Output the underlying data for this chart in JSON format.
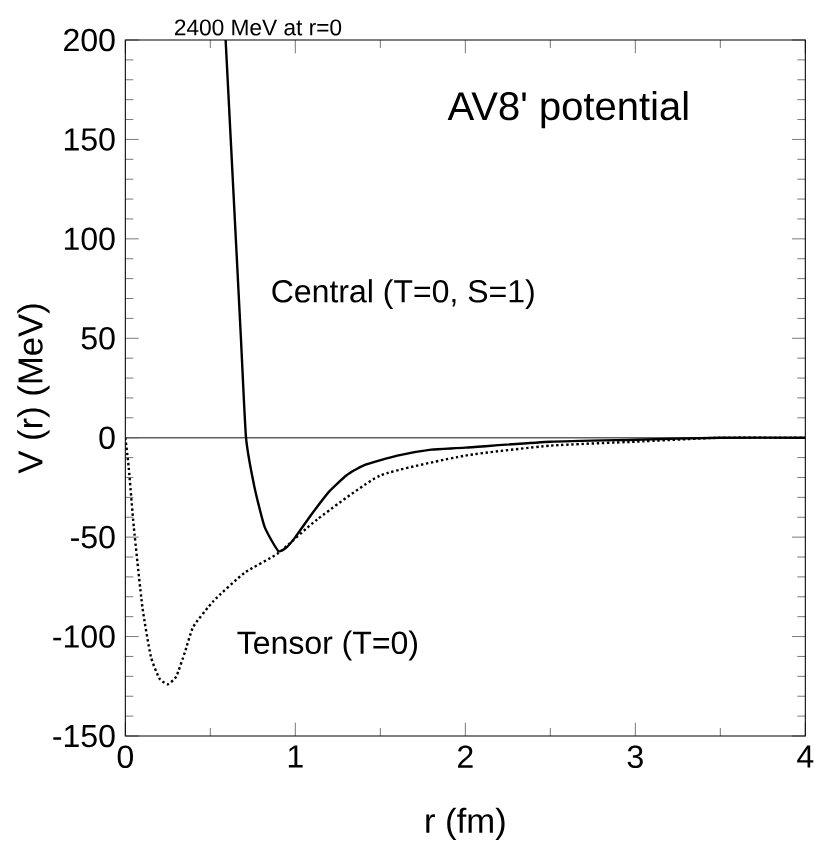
{
  "chart_data": {
    "type": "line",
    "title": "AV8' potential",
    "xlabel": "r (fm)",
    "ylabel": "V (r)  (MeV)",
    "annotations": [
      "2400 MeV at r=0"
    ],
    "xlim": [
      0,
      4
    ],
    "ylim": [
      -150,
      200
    ],
    "xticks": [
      0,
      1,
      2,
      3,
      4
    ],
    "yticks": [
      -150,
      -100,
      -50,
      0,
      50,
      100,
      150,
      200
    ],
    "marker": "none",
    "ref_lines": [
      {
        "axis": "y",
        "value": 0,
        "color": "#606060",
        "line_style": "solid"
      }
    ],
    "series": [
      {
        "name": "Central (T=0, S=1)",
        "color": "#000000",
        "line_style": "solid",
        "x": [
          0.59,
          0.62,
          0.65,
          0.68,
          0.71,
          0.76,
          0.82,
          0.9,
          0.95,
          1.0,
          1.1,
          1.2,
          1.3,
          1.4,
          1.6,
          1.8,
          2.0,
          2.5,
          3.0,
          3.5,
          4.0
        ],
        "values": [
          200,
          150,
          100,
          50,
          0,
          -25,
          -45,
          -57,
          -55,
          -50,
          -38,
          -27,
          -19,
          -14,
          -9,
          -6,
          -5,
          -2,
          -1,
          0,
          0
        ]
      },
      {
        "name": "Tensor (T=0)",
        "color": "#000000",
        "line_style": "dotted",
        "x": [
          0,
          0.02,
          0.05,
          0.1,
          0.15,
          0.2,
          0.25,
          0.3,
          0.35,
          0.4,
          0.52,
          0.7,
          0.9,
          1.13,
          1.5,
          2.0,
          2.5,
          3.0,
          3.5,
          4.0
        ],
        "values": [
          0,
          -15,
          -45,
          -85,
          -110,
          -121,
          -124,
          -120,
          -108,
          -95,
          -82,
          -68,
          -58,
          -41,
          -19,
          -9,
          -4,
          -2,
          0,
          0
        ]
      }
    ]
  }
}
